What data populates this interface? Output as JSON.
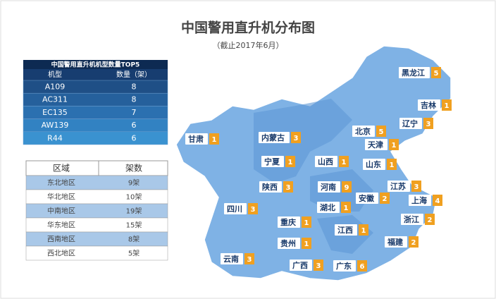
{
  "header": {
    "title": "中国警用直升机分布图",
    "subtitle": "（截止2017年6月）"
  },
  "model_table": {
    "title": "中国警用直升机机型数量TOP5",
    "columns": [
      "机型",
      "数量（架）"
    ],
    "rows": [
      [
        "A109",
        8
      ],
      [
        "AC311",
        8
      ],
      [
        "EC135",
        7
      ],
      [
        "AW139",
        6
      ],
      [
        "R44",
        6
      ]
    ]
  },
  "region_table": {
    "columns": [
      "区域",
      "架数"
    ],
    "rows": [
      [
        "东北地区",
        "9架"
      ],
      [
        "华北地区",
        "10架"
      ],
      [
        "中南地区",
        "19架"
      ],
      [
        "华东地区",
        "15架"
      ],
      [
        "西南地区",
        "8架"
      ],
      [
        "西北地区",
        "5架"
      ]
    ]
  },
  "map_labels": [
    {
      "name": "黑龙江",
      "count": 5
    },
    {
      "name": "吉林",
      "count": 1
    },
    {
      "name": "辽宁",
      "count": 3
    },
    {
      "name": "北京",
      "count": 5
    },
    {
      "name": "天津",
      "count": 1
    },
    {
      "name": "内蒙古",
      "count": 3
    },
    {
      "name": "甘肃",
      "count": 1
    },
    {
      "name": "宁夏",
      "count": 1
    },
    {
      "name": "山西",
      "count": 1
    },
    {
      "name": "山东",
      "count": 1
    },
    {
      "name": "陕西",
      "count": 3
    },
    {
      "name": "河南",
      "count": 9
    },
    {
      "name": "江苏",
      "count": 3
    },
    {
      "name": "安徽",
      "count": 2
    },
    {
      "name": "上海",
      "count": 4
    },
    {
      "name": "四川",
      "count": 3
    },
    {
      "name": "湖北",
      "count": 1
    },
    {
      "name": "浙江",
      "count": 2
    },
    {
      "name": "重庆",
      "count": 1
    },
    {
      "name": "江西",
      "count": 1
    },
    {
      "name": "贵州",
      "count": 1
    },
    {
      "name": "福建",
      "count": 2
    },
    {
      "name": "云南",
      "count": 3
    },
    {
      "name": "广西",
      "count": 3
    },
    {
      "name": "广东",
      "count": 6
    }
  ]
}
